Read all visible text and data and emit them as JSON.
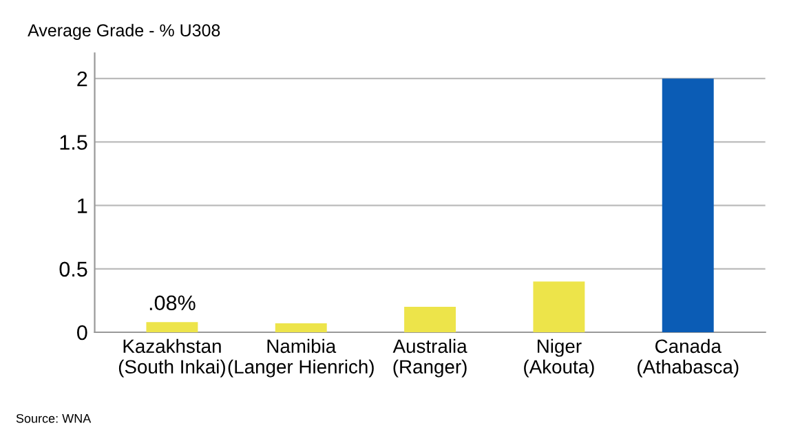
{
  "chart_data": {
    "type": "bar",
    "ylabel": "Average Grade - % U308",
    "categories": [
      "Kazakhstan\n(South Inkai)",
      "Namibia\n(Langer Hienrich)",
      "Australia\n(Ranger)",
      "Niger\n(Akouta)",
      "Canada\n(Athabasca)"
    ],
    "values": [
      0.08,
      0.07,
      0.2,
      0.4,
      2.0
    ],
    "colors": [
      "#ede44a",
      "#ede44a",
      "#ede44a",
      "#ede44a",
      "#0b5cb5"
    ],
    "value_labels": [
      ".08%",
      null,
      null,
      null,
      null
    ],
    "ylim": [
      0,
      2.2
    ],
    "yticks": [
      0,
      0.5,
      1,
      1.5,
      2
    ],
    "grid": "y",
    "annotations": [
      "Source: WNA"
    ]
  }
}
